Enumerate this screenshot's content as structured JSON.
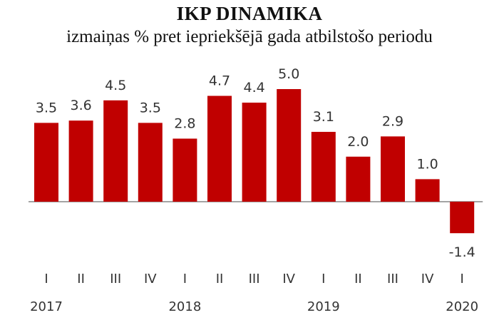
{
  "chart_data": {
    "type": "bar",
    "title": "IKP DINAMIKA",
    "subtitle": "izmaiņas % pret iepriekšējā gada atbilstošo periodu",
    "categories": [
      "I",
      "II",
      "III",
      "IV",
      "I",
      "II",
      "III",
      "IV",
      "I",
      "II",
      "III",
      "IV",
      "I"
    ],
    "years": [
      {
        "label": "2017",
        "category_index": 0
      },
      {
        "label": "2018",
        "category_index": 4
      },
      {
        "label": "2019",
        "category_index": 8
      },
      {
        "label": "2020",
        "category_index": 12
      }
    ],
    "values": [
      3.5,
      3.6,
      4.5,
      3.5,
      2.8,
      4.7,
      4.4,
      5.0,
      3.1,
      2.0,
      2.9,
      1.0,
      -1.4
    ],
    "value_labels": [
      "3.5",
      "3.6",
      "4.5",
      "3.5",
      "2.8",
      "4.7",
      "4.4",
      "5.0",
      "3.1",
      "2.0",
      "2.9",
      "1.0",
      "-1.4"
    ],
    "xlabel": "",
    "ylabel": "",
    "ylim": [
      -1.4,
      5.0
    ],
    "grid": false,
    "legend": "none",
    "bar_color": "#c00000",
    "baseline_color": "#6e6e6e"
  }
}
